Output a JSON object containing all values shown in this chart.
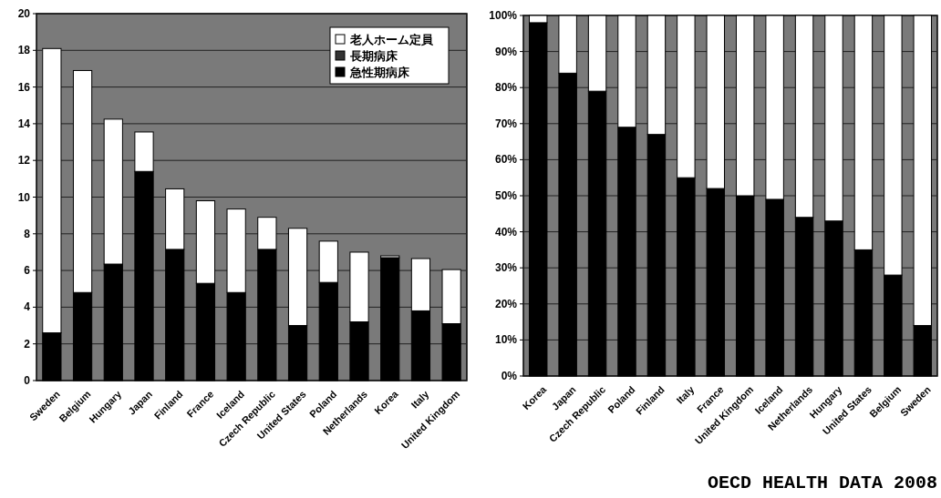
{
  "chart_data": [
    {
      "type": "bar",
      "stacked": true,
      "categories": [
        "Sweden",
        "Belgium",
        "Hungary",
        "Japan",
        "Finland",
        "France",
        "Iceland",
        "Czech Republic",
        "United States",
        "Poland",
        "Netherlands",
        "Korea",
        "Italy",
        "United Kingdom"
      ],
      "series": [
        {
          "name": "急性期病床",
          "color": "#000000",
          "values": [
            2.6,
            4.8,
            6.35,
            11.4,
            7.15,
            5.3,
            4.8,
            7.15,
            3.0,
            5.35,
            3.2,
            6.7,
            3.8,
            3.1
          ]
        },
        {
          "name": "長期病床",
          "color": "#333333",
          "values": [
            null,
            null,
            null,
            null,
            null,
            null,
            null,
            null,
            null,
            null,
            null,
            null,
            null,
            null
          ]
        },
        {
          "name": "老人ホーム定員",
          "color": "#ffffff",
          "values": [
            15.5,
            12.1,
            7.9,
            2.15,
            3.3,
            4.5,
            4.55,
            1.75,
            5.3,
            2.25,
            3.8,
            0.1,
            2.85,
            2.95
          ]
        }
      ],
      "ylim": [
        0,
        20
      ],
      "yticks": [
        0,
        2,
        4,
        6,
        8,
        10,
        12,
        14,
        16,
        18,
        20
      ],
      "grid": "y",
      "legend": "top right"
    },
    {
      "type": "bar",
      "stacked": true,
      "categories": [
        "Korea",
        "Japan",
        "Czech Republic",
        "Poland",
        "Finland",
        "Italy",
        "France",
        "United Kingdom",
        "Iceland",
        "Netherlands",
        "Hungary",
        "United States",
        "Belgium",
        "Sweden"
      ],
      "series": [
        {
          "color": "#000000",
          "values": [
            98,
            84,
            79,
            69,
            67,
            55,
            52,
            50,
            49,
            44,
            43,
            35,
            28,
            14
          ]
        },
        {
          "color": "#ffffff",
          "values": [
            2,
            16,
            21,
            31,
            33,
            45,
            48,
            50,
            51,
            56,
            57,
            65,
            72,
            86
          ]
        }
      ],
      "ylim": [
        0,
        100
      ],
      "yticks": [
        {
          "value": 0,
          "label": "0%"
        },
        {
          "value": 10,
          "label": "10%"
        },
        {
          "value": 20,
          "label": "20%"
        },
        {
          "value": 30,
          "label": "30%"
        },
        {
          "value": 40,
          "label": "40%"
        },
        {
          "value": 50,
          "label": "50%"
        },
        {
          "value": 60,
          "label": "60%"
        },
        {
          "value": 70,
          "label": "70%"
        },
        {
          "value": 80,
          "label": "80%"
        },
        {
          "value": 90,
          "label": "90%"
        },
        {
          "value": 100,
          "label": "100%"
        }
      ],
      "grid": "y",
      "annotations": [
        "OECD HEALTH DATA 2008"
      ]
    }
  ]
}
